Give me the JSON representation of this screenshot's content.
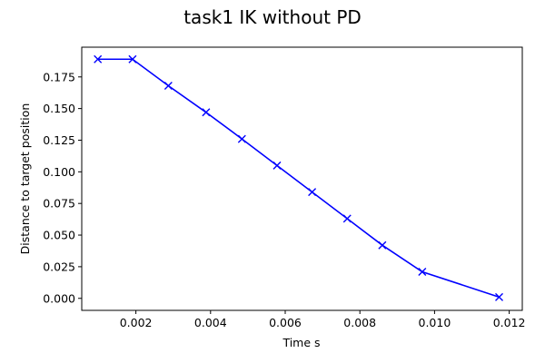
{
  "chart_data": {
    "type": "line",
    "title": "task1 IK without PD",
    "xlabel": "Time s",
    "ylabel": "Distance to target position",
    "xlim": [
      0.00055,
      0.01235
    ],
    "ylim": [
      -0.0095,
      0.1985
    ],
    "xticks": [
      "0.002",
      "0.004",
      "0.006",
      "0.008",
      "0.010",
      "0.012"
    ],
    "yticks": [
      "0.000",
      "0.025",
      "0.050",
      "0.075",
      "0.100",
      "0.125",
      "0.150",
      "0.175"
    ],
    "grid": false,
    "marker": "x",
    "series": [
      {
        "color": "#0000ff",
        "x": [
          0.00098,
          0.00191,
          0.00287,
          0.00388,
          0.00484,
          0.00578,
          0.00672,
          0.00766,
          0.0086,
          0.00967,
          0.01173
        ],
        "y": [
          0.189,
          0.189,
          0.168,
          0.147,
          0.126,
          0.105,
          0.084,
          0.063,
          0.042,
          0.021,
          0.001
        ]
      }
    ]
  }
}
